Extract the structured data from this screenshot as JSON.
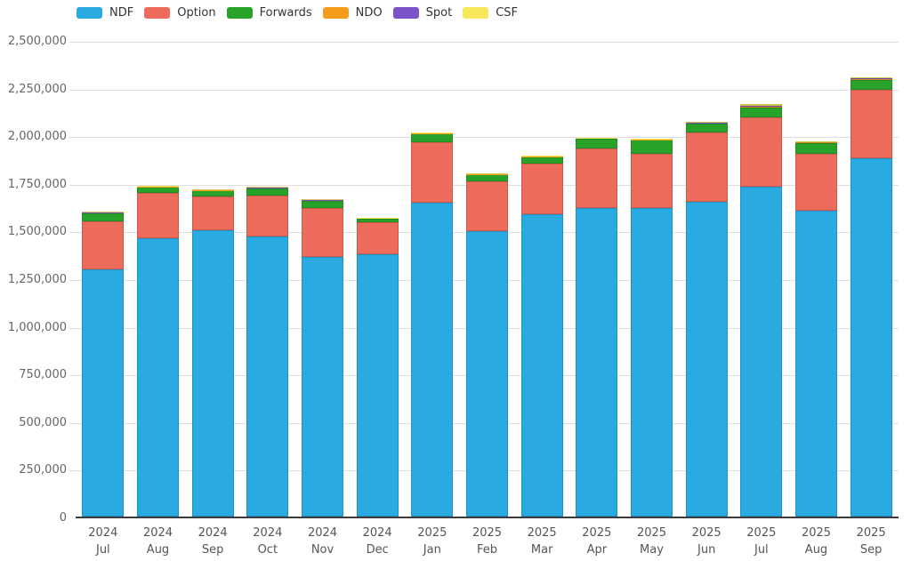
{
  "chart_data": {
    "type": "bar",
    "stacked": true,
    "title": "",
    "xlabel": "",
    "ylabel": "",
    "ylim": [
      0,
      2500000
    ],
    "ytick_interval": 250000,
    "ytick_labels": [
      "0",
      "250,000",
      "500,000",
      "750,000",
      "1,000,000",
      "1,250,000",
      "1,500,000",
      "1,750,000",
      "2,000,000",
      "2,250,000",
      "2,500,000"
    ],
    "grid": true,
    "legend_position": "top",
    "categories": [
      {
        "year": "2024",
        "month": "Jul"
      },
      {
        "year": "2024",
        "month": "Aug"
      },
      {
        "year": "2024",
        "month": "Sep"
      },
      {
        "year": "2024",
        "month": "Oct"
      },
      {
        "year": "2024",
        "month": "Nov"
      },
      {
        "year": "2024",
        "month": "Dec"
      },
      {
        "year": "2025",
        "month": "Jan"
      },
      {
        "year": "2025",
        "month": "Feb"
      },
      {
        "year": "2025",
        "month": "Mar"
      },
      {
        "year": "2025",
        "month": "Apr"
      },
      {
        "year": "2025",
        "month": "May"
      },
      {
        "year": "2025",
        "month": "Jun"
      },
      {
        "year": "2025",
        "month": "Jul"
      },
      {
        "year": "2025",
        "month": "Aug"
      },
      {
        "year": "2025",
        "month": "Sep"
      }
    ],
    "series": [
      {
        "name": "NDF",
        "color": "#29ABE2",
        "values": [
          1295000,
          1460000,
          1500000,
          1470000,
          1360000,
          1375000,
          1645000,
          1495000,
          1585000,
          1620000,
          1620000,
          1650000,
          1730000,
          1605000,
          1880000
        ]
      },
      {
        "name": "Option",
        "color": "#EC6B5B",
        "values": [
          255000,
          240000,
          180000,
          215000,
          260000,
          170000,
          320000,
          263000,
          268000,
          313000,
          285000,
          363000,
          365000,
          300000,
          360000
        ]
      },
      {
        "name": "Forwards",
        "color": "#29A229",
        "values": [
          40000,
          30000,
          30000,
          38000,
          38000,
          19000,
          44000,
          37000,
          36000,
          49000,
          72000,
          50000,
          52000,
          56000,
          52000
        ]
      },
      {
        "name": "NDO",
        "color": "#F79B1F",
        "values": [
          3000,
          2000,
          2000,
          2000,
          2000,
          2000,
          3000,
          2000,
          2000,
          3000,
          3000,
          3000,
          5000,
          3000,
          4000
        ]
      },
      {
        "name": "Spot",
        "color": "#7C52C8",
        "values": [
          1000,
          1000,
          1000,
          1000,
          1000,
          1000,
          2000,
          1000,
          1000,
          1000,
          1000,
          2000,
          2000,
          1000,
          2000
        ]
      },
      {
        "name": "CSF",
        "color": "#F7E75A",
        "values": [
          6000,
          3000,
          2000,
          3000,
          3000,
          2000,
          3000,
          2000,
          2000,
          3000,
          3000,
          3000,
          9000,
          3000,
          7000
        ]
      }
    ],
    "colors": {
      "gridline": "#dedede",
      "axis_line": "#3c3c3c",
      "tick_text": "#666666",
      "legend_text": "#333333",
      "background": "#ffffff"
    }
  }
}
